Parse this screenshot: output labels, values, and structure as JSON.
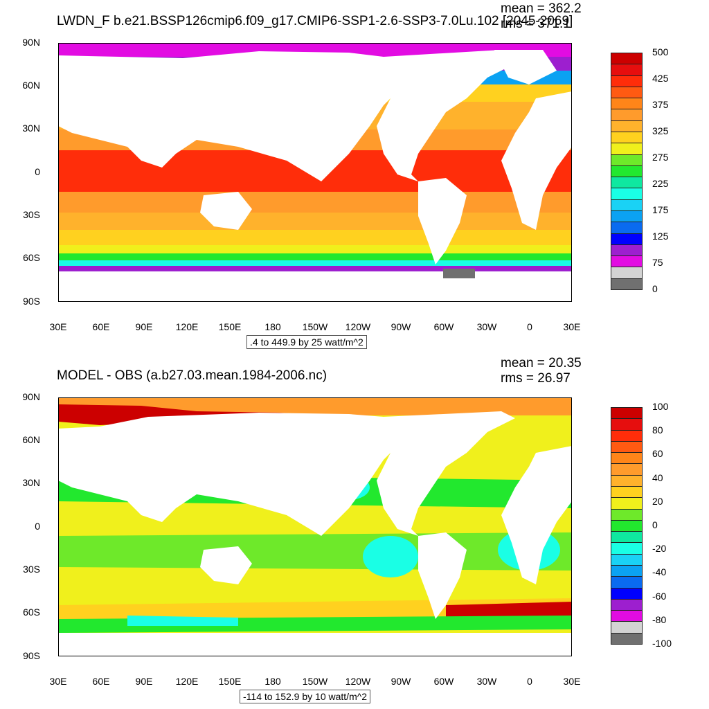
{
  "panels": [
    {
      "title": "LWDN_F b.e21.BSSP126cmip6.f09_g17.CMIP6-SSP1-2.6-SSP3-7.0Lu.102 [2045-2069]",
      "mean": "mean = 362.2",
      "rms": "rms = 371.1",
      "range": ".4 to 449.9 by 25 watt/m^2",
      "colorbar": {
        "colors": [
          "#707070",
          "#d3d3d3",
          "#e20ce2",
          "#9d1fcf",
          "#0000ff",
          "#0a6bf0",
          "#0ba2f2",
          "#1ad2f5",
          "#1affe5",
          "#0fe8a0",
          "#22e82e",
          "#6ee92a",
          "#f0f01c",
          "#ffd11f",
          "#ffb22c",
          "#ff9b2c",
          "#ff8519",
          "#ff5a12",
          "#ff2d0a",
          "#e60e0e",
          "#cc0000"
        ],
        "labels": [
          "0",
          "75",
          "125",
          "175",
          "225",
          "275",
          "325",
          "375",
          "425",
          "500"
        ]
      }
    },
    {
      "title": "MODEL - OBS (a.b27.03.mean.1984-2006.nc)",
      "mean": "mean = 20.35",
      "rms": "rms = 26.97",
      "range": "-114 to 152.9 by 10 watt/m^2",
      "colorbar": {
        "colors": [
          "#707070",
          "#d3d3d3",
          "#e20ce2",
          "#9d1fcf",
          "#0000ff",
          "#0a6bf0",
          "#0ba2f2",
          "#1ad2f5",
          "#1affe5",
          "#0fe8a0",
          "#22e82e",
          "#6ee92a",
          "#f0f01c",
          "#ffd11f",
          "#ffb22c",
          "#ff9b2c",
          "#ff8519",
          "#ff5a12",
          "#ff2d0a",
          "#e60e0e",
          "#cc0000"
        ],
        "labels": [
          "-100",
          "-80",
          "-60",
          "-40",
          "-20",
          "0",
          "20",
          "40",
          "60",
          "80",
          "100"
        ]
      }
    }
  ],
  "axes": {
    "lat_labels": [
      "90N",
      "60N",
      "30N",
      "0",
      "30S",
      "60S",
      "90S"
    ],
    "lon_labels": [
      "30E",
      "60E",
      "90E",
      "120E",
      "150E",
      "180",
      "150W",
      "120W",
      "90W",
      "60W",
      "30W",
      "0",
      "30E"
    ]
  }
}
